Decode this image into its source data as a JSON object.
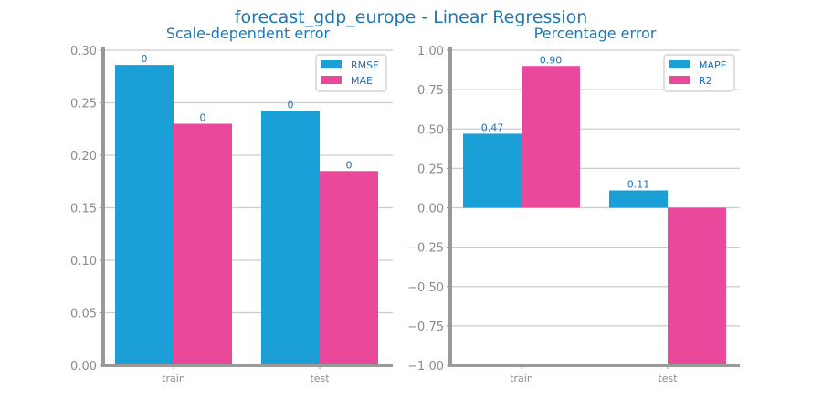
{
  "figure_title": "forecast_gdp_europe - Linear Regression",
  "colors": {
    "series_1": "#1a9fd6",
    "series_2": "#ea489b",
    "title": "#1f77b4",
    "grid": "#cccccc",
    "axis": "#999999"
  },
  "chart_data": [
    {
      "type": "bar",
      "title": "Scale-dependent error",
      "categories": [
        "train",
        "test"
      ],
      "series": [
        {
          "name": "RMSE",
          "values": [
            0.286,
            0.242
          ],
          "labels": [
            "0",
            "0"
          ]
        },
        {
          "name": "MAE",
          "values": [
            0.23,
            0.185
          ],
          "labels": [
            "0",
            "0"
          ]
        }
      ],
      "ylim": [
        0,
        0.3
      ],
      "yticks": [
        "0.00",
        "0.05",
        "0.10",
        "0.15",
        "0.20",
        "0.25",
        "0.30"
      ],
      "grid": true,
      "legend_position": "top-right"
    },
    {
      "type": "bar",
      "title": "Percentage error",
      "categories": [
        "train",
        "test"
      ],
      "series": [
        {
          "name": "MAPE",
          "values": [
            0.47,
            0.11
          ],
          "labels": [
            "0.47",
            "0.11"
          ]
        },
        {
          "name": "R2",
          "values": [
            0.9,
            -1.0
          ],
          "labels": [
            "0.90",
            ""
          ]
        }
      ],
      "ylim": [
        -1.0,
        1.0
      ],
      "yticks": [
        "−1.00",
        "−0.75",
        "−0.50",
        "−0.25",
        "0.00",
        "0.25",
        "0.50",
        "0.75",
        "1.00"
      ],
      "grid": true,
      "legend_position": "top-right"
    }
  ]
}
